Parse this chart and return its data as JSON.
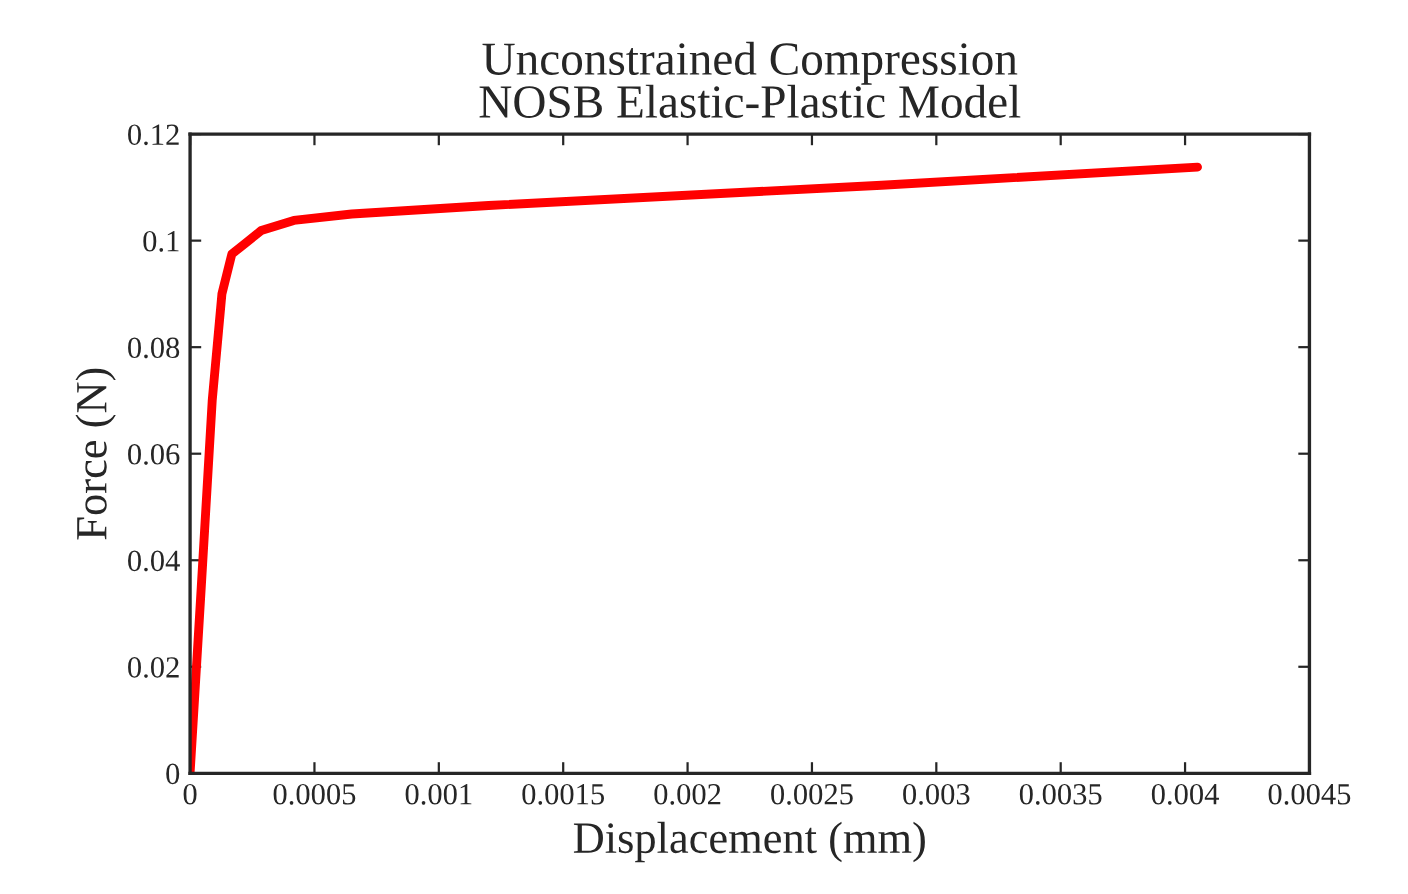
{
  "chart_data": {
    "type": "line",
    "title": "Unconstrained Compression\nNOSB Elastic-Plastic Model",
    "xlabel": "Displacement (mm)",
    "ylabel": "Force (N)",
    "series": [
      {
        "color": "#ff0000",
        "x": [
          0,
          4.5e-05,
          8.9e-05,
          0.000128,
          0.000168,
          0.00022,
          0.000286,
          0.000417,
          0.00065,
          0.0012,
          0.00278,
          0.00405
        ],
        "values": [
          0,
          0.035,
          0.07,
          0.09,
          0.0975,
          0.0994,
          0.1019,
          0.1038,
          0.105,
          0.1066,
          0.1104,
          0.1138
        ]
      }
    ],
    "xlim": [
      0,
      0.0045
    ],
    "xticks": [
      0,
      0.0005,
      0.001,
      0.0015,
      0.002,
      0.0025,
      0.003,
      0.0035,
      0.004,
      0.0045
    ],
    "ylim": [
      0,
      0.12
    ],
    "yticks": [
      0,
      0.02,
      0.04,
      0.06,
      0.08,
      0.1,
      0.12
    ],
    "grid": false,
    "legend": false,
    "marker": "none",
    "line_style": "solid"
  }
}
